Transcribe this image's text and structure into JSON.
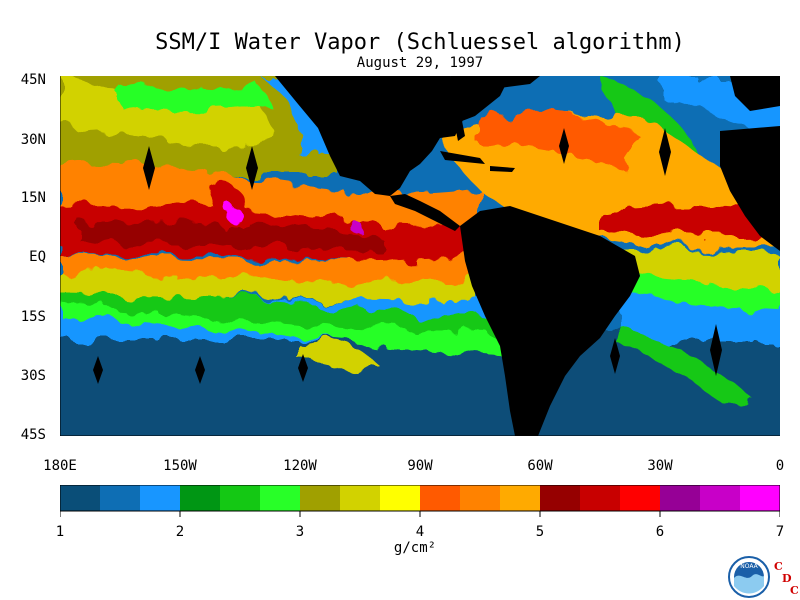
{
  "title": "SSM/I Water Vapor (Schluessel algorithm)",
  "date": "August 29, 1997",
  "lat_labels": [
    "45N",
    "30N",
    "15N",
    "EQ",
    "15S",
    "30S",
    "45S"
  ],
  "lon_labels": [
    "180E",
    "150W",
    "120W",
    "90W",
    "60W",
    "30W",
    "0"
  ],
  "colorbar": {
    "colors": [
      "#0a4e78",
      "#0e6eb4",
      "#1896ff",
      "#009614",
      "#14c814",
      "#28ff28",
      "#a0a000",
      "#d2d200",
      "#ffff00",
      "#ff5a00",
      "#ff8200",
      "#ffaa00",
      "#960000",
      "#c80000",
      "#ff0000",
      "#960096",
      "#c800c8",
      "#ff00ff"
    ],
    "tick_labels": [
      "1",
      "2",
      "3",
      "4",
      "5",
      "6",
      "7"
    ],
    "units": "g/cm²"
  },
  "logo": {
    "noaa_text": "NOAA",
    "cdc_text": "CDC"
  }
}
